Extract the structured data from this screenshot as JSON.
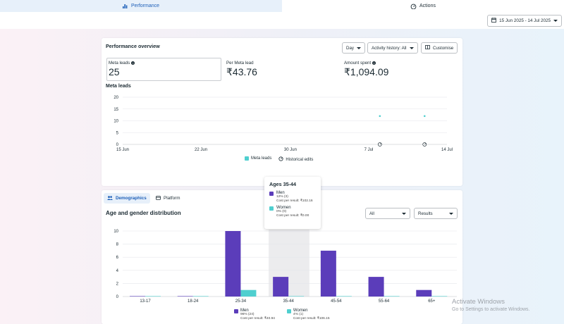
{
  "tabs": [
    {
      "label": "Performance",
      "icon": "bar-chart-icon",
      "active": true
    },
    {
      "label": "Actions",
      "icon": "gauge-icon",
      "active": false
    }
  ],
  "date_range": {
    "label": "15 Jun 2025 - 14 Jul 2025",
    "icon": "calendar-icon"
  },
  "overview": {
    "title": "Performance overview",
    "day_button": "Day",
    "history_button": "Activity history: All",
    "customise_button": "Customise",
    "metrics": [
      {
        "label": "Meta leads",
        "value": "25",
        "info": true
      },
      {
        "label": "Per Meta lead",
        "value": "₹43.76",
        "info": false
      },
      {
        "label": "Amount spent",
        "value": "₹1,094.09",
        "info": true
      }
    ],
    "chart_title": "Meta leads",
    "legend_leads": "Meta leads",
    "legend_edits": "Historical edits"
  },
  "demographics": {
    "tab_demographics": "Demographics",
    "tab_platform": "Platform",
    "title": "Age and gender distribution",
    "filter_all": "All",
    "filter_results": "Results",
    "legend_men": {
      "name": "Men",
      "line1": "96% (24)",
      "line2": "Cost per result: ₹40.94"
    },
    "legend_women": {
      "name": "Women",
      "line1": "4% (1)",
      "line2": "Cost per result: ₹106.15"
    }
  },
  "tooltip": {
    "title": "Ages 35-44",
    "men": {
      "name": "Men",
      "line1": "12% (3)",
      "line2": "Cost per result: ₹102.16"
    },
    "women": {
      "name": "Women",
      "line1": "0% (0)",
      "line2": "Cost per result: ₹0.00"
    }
  },
  "chart_data": [
    {
      "type": "scatter",
      "title": "Meta leads",
      "x_ticks": [
        "15 Jun",
        "22 Jun",
        "30 Jun",
        "7 Jul",
        "14 Jul"
      ],
      "y_ticks": [
        0,
        5,
        10,
        15,
        20
      ],
      "ylim": [
        0,
        20
      ],
      "points": [
        {
          "x": "8 Jul",
          "y": 12
        },
        {
          "x": "12 Jul",
          "y": 12
        }
      ],
      "historical_edits": [
        "8 Jul",
        "12 Jul"
      ],
      "series": [
        {
          "name": "Meta leads",
          "color": "#4fcfcf"
        }
      ],
      "grid": true,
      "legend": "bottom-center"
    },
    {
      "type": "bar",
      "title": "Age and gender distribution",
      "categories": [
        "13-17",
        "18-24",
        "25-34",
        "35-44",
        "45-54",
        "55-64",
        "65+"
      ],
      "series": [
        {
          "name": "Men",
          "values": [
            0,
            0,
            10,
            3,
            7,
            3,
            1
          ],
          "color": "#5b3dba"
        },
        {
          "name": "Women",
          "values": [
            0,
            0,
            1,
            0,
            0,
            0,
            0
          ],
          "color": "#4fcfcf"
        }
      ],
      "y_ticks": [
        0,
        2,
        4,
        6,
        8,
        10
      ],
      "ylim": [
        0,
        10
      ],
      "highlighted_category": "35-44",
      "grid": true,
      "legend": "bottom-center"
    }
  ],
  "watermark": {
    "line1": "Activate Windows",
    "line2": "Go to Settings to activate Windows."
  }
}
